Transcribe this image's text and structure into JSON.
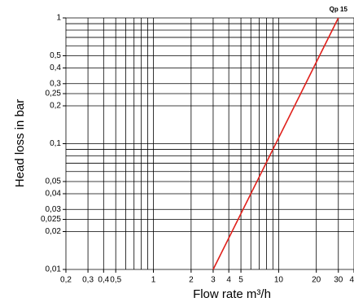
{
  "chart_data": {
    "type": "line",
    "x_label": "Flow rate m³/h",
    "y_label": "Head loss in bar",
    "log_x": true,
    "log_y": true,
    "grid": true,
    "xlim": [
      0.2,
      40
    ],
    "ylim": [
      0.01,
      1
    ],
    "xticks": [
      {
        "value": 0.2,
        "label": "0,2"
      },
      {
        "value": 0.3,
        "label": "0,3"
      },
      {
        "value": 0.4,
        "label": "0,4"
      },
      {
        "value": 0.5,
        "label": "0,5"
      },
      1,
      2,
      3,
      4,
      5,
      10,
      20,
      30,
      40
    ],
    "yticks": [
      1,
      {
        "value": 0.5,
        "label": "0,5"
      },
      {
        "value": 0.4,
        "label": "0,4"
      },
      {
        "value": 0.3,
        "label": "0,3"
      },
      {
        "value": 0.25,
        "label": "0,25"
      },
      {
        "value": 0.2,
        "label": "0,2"
      },
      {
        "value": 0.1,
        "label": "0,1"
      },
      {
        "value": 0.05,
        "label": "0,05"
      },
      {
        "value": 0.04,
        "label": "0,04"
      },
      {
        "value": 0.03,
        "label": "0,03"
      },
      {
        "value": 0.025,
        "label": "0,025"
      },
      {
        "value": 0.02,
        "label": "0,02"
      },
      {
        "value": 0.01,
        "label": "0,01"
      }
    ],
    "x_gridlines": [
      0.2,
      0.3,
      0.4,
      0.5,
      0.6,
      0.7,
      0.8,
      0.9,
      1,
      2,
      3,
      4,
      5,
      6,
      7,
      8,
      9,
      10,
      20,
      30,
      40
    ],
    "y_gridlines": [
      0.01,
      0.02,
      0.025,
      0.03,
      0.04,
      0.05,
      0.06,
      0.07,
      0.08,
      0.09,
      0.1,
      0.2,
      0.25,
      0.3,
      0.4,
      0.5,
      0.6,
      0.7,
      0.8,
      0.9,
      1
    ],
    "series": [
      {
        "name": "Qp 15",
        "color": "#e0201b",
        "x": [
          3,
          30
        ],
        "values": [
          0.01,
          1
        ]
      }
    ]
  }
}
